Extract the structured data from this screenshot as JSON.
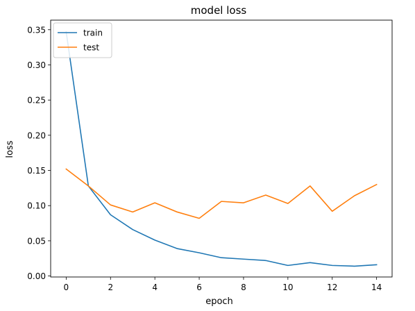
{
  "chart_data": {
    "type": "line",
    "title": "model loss",
    "xlabel": "epoch",
    "ylabel": "loss",
    "xlim": [
      -0.7,
      14.7
    ],
    "ylim": [
      -0.0014,
      0.3636
    ],
    "xticks": [
      0,
      2,
      4,
      6,
      8,
      10,
      12,
      14
    ],
    "xtick_labels": [
      "0",
      "2",
      "4",
      "6",
      "8",
      "10",
      "12",
      "14"
    ],
    "yticks": [
      0.0,
      0.05,
      0.1,
      0.15,
      0.2,
      0.25,
      0.3,
      0.35
    ],
    "ytick_labels": [
      "0.00",
      "0.05",
      "0.10",
      "0.15",
      "0.20",
      "0.25",
      "0.30",
      "0.35"
    ],
    "grid": false,
    "legend_position": "top-left",
    "x": [
      0,
      1,
      2,
      3,
      4,
      5,
      6,
      7,
      8,
      9,
      10,
      11,
      12,
      13,
      14
    ],
    "series": [
      {
        "name": "train",
        "color": "#1f77b4",
        "values": [
          0.347,
          0.128,
          0.087,
          0.066,
          0.051,
          0.039,
          0.033,
          0.026,
          0.024,
          0.022,
          0.015,
          0.019,
          0.015,
          0.014,
          0.016
        ]
      },
      {
        "name": "test",
        "color": "#ff7f0e",
        "values": [
          0.152,
          0.128,
          0.101,
          0.091,
          0.104,
          0.091,
          0.082,
          0.106,
          0.104,
          0.115,
          0.103,
          0.128,
          0.092,
          0.114,
          0.13
        ]
      }
    ]
  }
}
